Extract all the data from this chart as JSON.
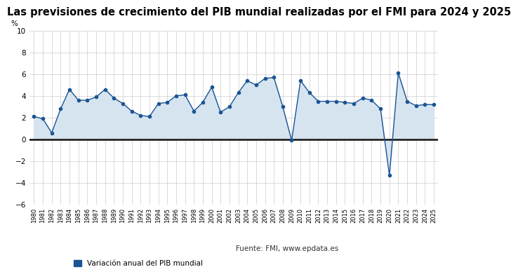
{
  "title": "Las previsiones de crecimiento del PIB mundial realizadas por el FMI para 2024 y 2025",
  "ylabel": "%",
  "legend_label": "Variación anual del PIB mundial",
  "source_text": "Fuente: FMI, www.epdata.es",
  "years": [
    1980,
    1981,
    1982,
    1983,
    1984,
    1985,
    1986,
    1987,
    1988,
    1989,
    1990,
    1991,
    1992,
    1993,
    1994,
    1995,
    1996,
    1997,
    1998,
    1999,
    2000,
    2001,
    2002,
    2003,
    2004,
    2005,
    2006,
    2007,
    2008,
    2009,
    2010,
    2011,
    2012,
    2013,
    2014,
    2015,
    2016,
    2017,
    2018,
    2019,
    2020,
    2021,
    2022,
    2023,
    2024,
    2025
  ],
  "values": [
    2.1,
    1.9,
    0.6,
    2.8,
    4.6,
    3.6,
    3.6,
    3.9,
    4.6,
    3.8,
    3.3,
    2.6,
    2.2,
    2.1,
    3.3,
    3.4,
    4.0,
    4.1,
    2.6,
    3.4,
    4.8,
    2.5,
    3.0,
    4.3,
    5.4,
    5.0,
    5.6,
    5.7,
    3.0,
    -0.1,
    5.4,
    4.3,
    3.5,
    3.5,
    3.5,
    3.4,
    3.3,
    3.8,
    3.6,
    2.8,
    -3.3,
    6.1,
    3.5,
    3.1,
    3.2,
    3.2
  ],
  "line_color": "#1a5494",
  "marker_color": "#1a5494",
  "fill_color": "#d6e4f0",
  "zero_line_color": "#111111",
  "bg_color": "#ffffff",
  "plot_bg_color": "#ffffff",
  "ylim": [
    -6,
    10
  ],
  "yticks": [
    -6,
    -4,
    -2,
    0,
    2,
    4,
    6,
    8,
    10
  ],
  "grid_color": "#cccccc",
  "title_fontsize": 10.5,
  "axis_fontsize": 7.5,
  "tick_fontsize": 6
}
